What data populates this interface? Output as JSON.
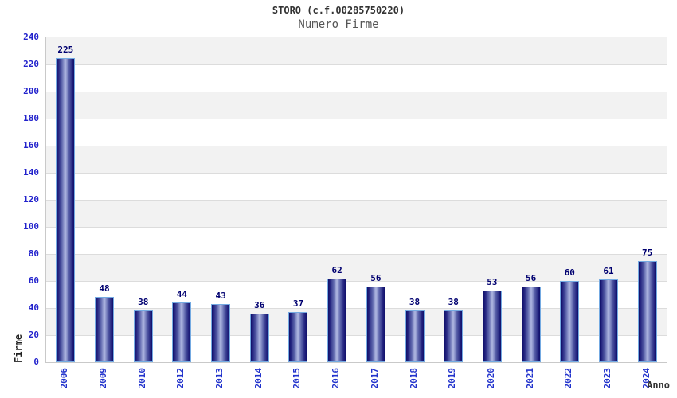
{
  "header": {
    "title": "STORO (c.f.00285750220)",
    "subtitle": "Numero Firme"
  },
  "chart_data": {
    "type": "bar",
    "title": "STORO (c.f.00285750220)",
    "subtitle": "Numero Firme",
    "xlabel": "Anno",
    "ylabel": "Firme",
    "categories": [
      "2006",
      "2009",
      "2010",
      "2012",
      "2013",
      "2014",
      "2015",
      "2016",
      "2017",
      "2018",
      "2019",
      "2020",
      "2021",
      "2022",
      "2023",
      "2024"
    ],
    "values": [
      225,
      48,
      38,
      44,
      43,
      36,
      37,
      62,
      56,
      38,
      38,
      53,
      56,
      60,
      61,
      75
    ],
    "ylim": [
      0,
      240
    ],
    "ytick_step": 20,
    "legend": "none",
    "grid": "horizontal-bands",
    "colors": {
      "bar_dark": "#10106a",
      "bar_light": "#aab2de",
      "bar_border": "#74aae2",
      "tick_label": "#2222cc",
      "value_label": "#000070",
      "band_gray": "#f2f2f2",
      "band_white": "#ffffff",
      "grid_line": "#dcdcdc",
      "plot_border": "#c9c9c9",
      "title_color": "#333333",
      "subtitle_color": "#555555"
    }
  }
}
